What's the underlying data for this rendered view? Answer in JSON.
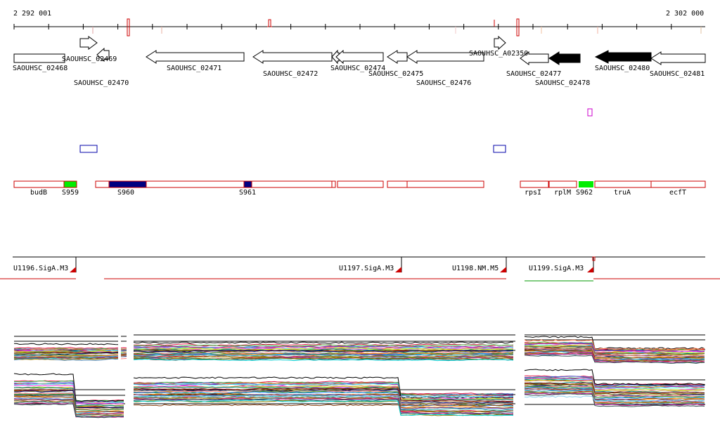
{
  "ruler": {
    "start": "2 292 001",
    "end": "2 302 000"
  },
  "genes": {
    "locus_labels": [
      "SAOUHSC_02468",
      "SAOUHSC_02469",
      "SAOUHSC_02470",
      "SAOUHSC_02471",
      "SAOUHSC_02472",
      "SAOUHSC_02474",
      "SAOUHSC_02475",
      "SAOUHSC_02476",
      "SAOUHSC_A02350",
      "SAOUHSC_02477",
      "SAOUHSC_02478",
      "SAOUHSC_02480",
      "SAOUHSC_02481"
    ]
  },
  "operons": {
    "labels": [
      "budB",
      "S959",
      "S960",
      "S961",
      "rpsI",
      "rplM",
      "S962",
      "truA",
      "ecfT"
    ]
  },
  "transcripts": {
    "labels": [
      "U1196.SigA.M3",
      "U1197.SigA.M3",
      "U1198.NM.M5",
      "U1199.SigA.M3"
    ]
  },
  "colors": {
    "gene_outline": "#000000",
    "gene_filled": "#000000",
    "operon_outline": "#cc0000",
    "operon_blue": "#000080",
    "operon_green": "#00ee00",
    "ruler_tick_red": "#cc0000",
    "transcript_red": "#cc0000",
    "transcript_green": "#009900",
    "magenta": "#cc00cc",
    "box_blue": "#0000aa"
  }
}
